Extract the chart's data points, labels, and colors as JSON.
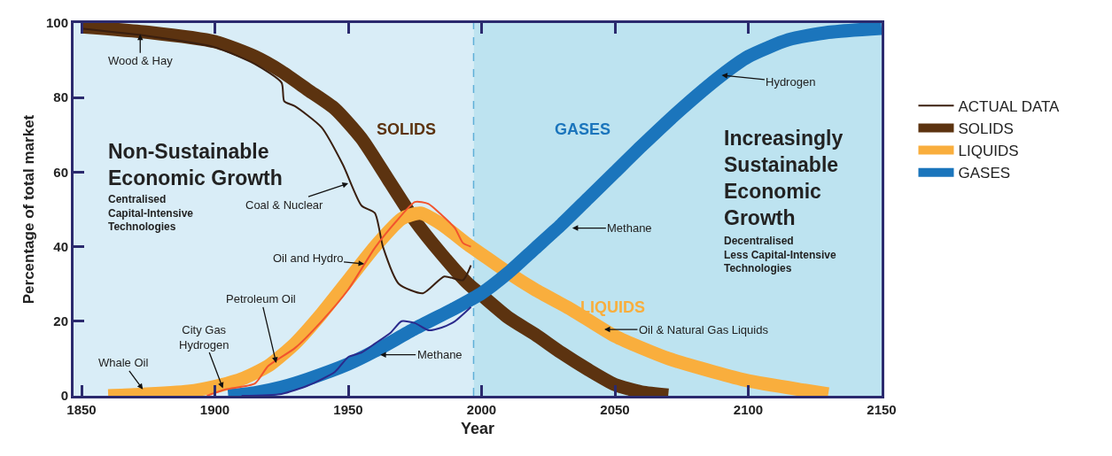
{
  "chart_data": {
    "type": "line",
    "xlabel": "Year",
    "ylabel": "Percentage of total market",
    "xlim": [
      1847,
      2150
    ],
    "xticks": [
      1850,
      1900,
      1950,
      2000,
      2050,
      2100,
      2150
    ],
    "ylim": [
      0,
      100
    ],
    "yticks": [
      0,
      20,
      40,
      60,
      80,
      100
    ],
    "grid": false,
    "legend": "right",
    "marker": "none",
    "series": [
      {
        "name": "SOLIDS",
        "color": "#5c3310",
        "x": [
          1850,
          1875,
          1900,
          1915,
          1925,
          1935,
          1945,
          1955,
          1965,
          1975,
          1985,
          1995,
          2000,
          2010,
          2020,
          2030,
          2040,
          2050,
          2060,
          2070
        ],
        "values": [
          99,
          97.5,
          95,
          91,
          87,
          82,
          77,
          69,
          58,
          47,
          38,
          30,
          27,
          21,
          16.5,
          11.5,
          7,
          3,
          1,
          0.2
        ]
      },
      {
        "name": "LIQUIDS",
        "color": "#f9ae3d",
        "x": [
          1860,
          1870,
          1890,
          1900,
          1910,
          1920,
          1930,
          1940,
          1950,
          1960,
          1970,
          1977,
          1985,
          1995,
          2000,
          2010,
          2020,
          2034,
          2050,
          2070,
          2087,
          2100,
          2121,
          2130
        ],
        "values": [
          0,
          0.3,
          1.2,
          2.5,
          4.5,
          8,
          14,
          22,
          31,
          40,
          47.5,
          49,
          46,
          40.5,
          38,
          33,
          28.5,
          23,
          16,
          10,
          6.4,
          4,
          1.5,
          0.5
        ]
      },
      {
        "name": "GASES",
        "color": "#1b75bc",
        "x": [
          1905,
          1915,
          1925,
          1935,
          1950,
          1960,
          1975,
          1990,
          2000,
          2010,
          2020,
          2030,
          2040,
          2050,
          2060,
          2075,
          2090,
          2100,
          2115,
          2130,
          2150
        ],
        "values": [
          0,
          0.8,
          2.3,
          4.5,
          8.5,
          12,
          18,
          23.5,
          27.5,
          33,
          39.5,
          46,
          53,
          60,
          67,
          77,
          86,
          91,
          95.5,
          97.5,
          98.6
        ]
      },
      {
        "name": "ACTUAL DATA",
        "color": "#3a1f0f",
        "x": [
          1850,
          1875,
          1900,
          1915,
          1925,
          1926,
          1930,
          1940,
          1948,
          1955,
          1960,
          1963,
          1969,
          1978,
          1986,
          1993,
          1996
        ],
        "values": [
          98.5,
          96.5,
          93.5,
          89,
          84,
          79,
          77.7,
          72,
          62,
          51,
          49,
          40,
          30,
          27.5,
          32,
          31,
          35
        ]
      },
      {
        "color": "#f2542d",
        "x": [
          1897,
          1904,
          1915,
          1920,
          1930,
          1940,
          1950,
          1960,
          1968,
          1975,
          1980,
          1985,
          1990,
          1993,
          1996
        ],
        "values": [
          0,
          1.7,
          3.3,
          8,
          12.8,
          20,
          28.5,
          39.7,
          46.8,
          52,
          51.5,
          48.5,
          45,
          41,
          40
        ]
      },
      {
        "color": "#2b2a8c",
        "x": [
          1910,
          1925,
          1935,
          1945,
          1950,
          1955,
          1960,
          1966,
          1970,
          1975,
          1980,
          1985,
          1990,
          1996
        ],
        "values": [
          0,
          0.5,
          2.8,
          6.4,
          10.4,
          11.6,
          14,
          17,
          20,
          19.5,
          17.6,
          18.3,
          20,
          23.8
        ]
      }
    ],
    "bands": [
      {
        "axis": "x",
        "from": 1847,
        "to": 1997,
        "color": "#d9edf7"
      },
      {
        "axis": "x",
        "from": 1997,
        "to": 2150,
        "color": "#bde3f0"
      }
    ],
    "ref_lines": [
      {
        "axis": "x",
        "value": 1997,
        "color": "#5fb0d8",
        "line_style": "dashed"
      }
    ],
    "annotations": [
      {
        "text": "Wood & Hay",
        "x": 1872,
        "y": 97
      },
      {
        "text": "Coal & Nuclear",
        "x": 1950,
        "y": 57
      },
      {
        "text": "Oil and Hydro",
        "x": 1956,
        "y": 35.4
      },
      {
        "text": "Petroleum Oil",
        "x": 1923,
        "y": 8.8
      },
      {
        "text": "City Gas\nHydrogen",
        "x": 1903,
        "y": 2
      },
      {
        "text": "Whale Oil",
        "x": 1873,
        "y": 1.7
      },
      {
        "text": "Methane",
        "x": 1962,
        "y": 11
      },
      {
        "text": "Methane",
        "x": 2034,
        "y": 45
      },
      {
        "text": "Hydrogen",
        "x": 2090,
        "y": 86
      },
      {
        "text": "Oil & Natural Gas Liquids",
        "x": 2046,
        "y": 17.8
      },
      "Non-Sustainable\nEconomic Growth",
      "Centralised\nCapital-Intensive\nTechnologies",
      "Increasingly\nSustainable\nEconomic\nGrowth",
      "Decentralised\nLess Capital-Intensive\nTechnologies"
    ]
  }
}
